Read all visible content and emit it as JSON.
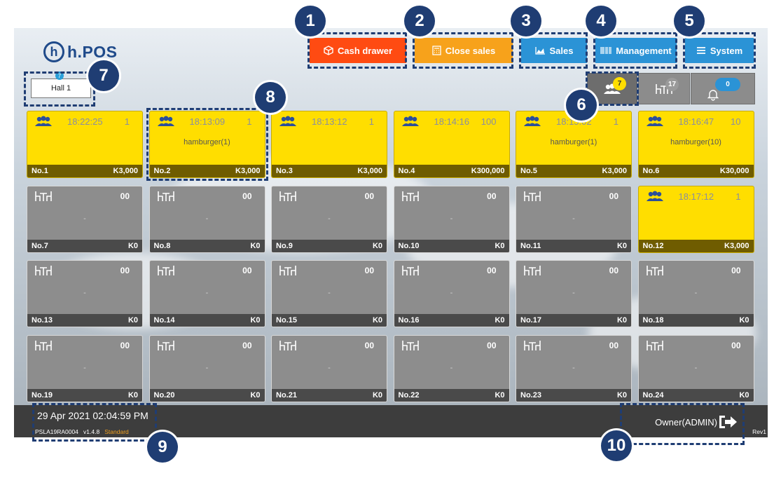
{
  "app": {
    "logo_text": "h.POS",
    "logo_mark": "h"
  },
  "toolbar": [
    {
      "label": "Cash drawer",
      "icon": "cash-drawer-icon",
      "color": "#ff4b12"
    },
    {
      "label": "Close sales",
      "icon": "calculator-icon",
      "color": "#f7a21b"
    },
    {
      "label": "Sales",
      "icon": "chart-icon",
      "color": "#2b93d6"
    },
    {
      "label": "Management",
      "icon": "barcode-icon",
      "color": "#2b93d6"
    },
    {
      "label": "System",
      "icon": "menu-icon",
      "color": "#2b93d6"
    }
  ],
  "hall": {
    "label": "Hall 1",
    "badge": "7"
  },
  "filters": [
    {
      "name": "occupied",
      "icon": "people-icon",
      "badge": "7",
      "badge_color": "#ffde00"
    },
    {
      "name": "empty",
      "icon": "table-icon",
      "badge": "17",
      "badge_color": "#9a9a9a"
    },
    {
      "name": "alerts",
      "icon": "bell-icon",
      "badge": "0",
      "badge_color": "#2b93d6"
    }
  ],
  "tables": [
    {
      "no": "No.1",
      "occupied": true,
      "time": "18:22:25",
      "guests": "1",
      "item": "",
      "amount": "K3,000"
    },
    {
      "no": "No.2",
      "occupied": true,
      "time": "18:13:09",
      "guests": "1",
      "item": "hamburger(1)",
      "amount": "K3,000"
    },
    {
      "no": "No.3",
      "occupied": true,
      "time": "18:13:12",
      "guests": "1",
      "item": "",
      "amount": "K3,000"
    },
    {
      "no": "No.4",
      "occupied": true,
      "time": "18:14:16",
      "guests": "100",
      "item": "",
      "amount": "K300,000"
    },
    {
      "no": "No.5",
      "occupied": true,
      "time": "18:15:02",
      "guests": "1",
      "item": "hamburger(1)",
      "amount": "K3,000"
    },
    {
      "no": "No.6",
      "occupied": true,
      "time": "18:16:47",
      "guests": "10",
      "item": "hamburger(10)",
      "amount": "K30,000"
    },
    {
      "no": "No.7",
      "occupied": false,
      "time": "",
      "guests": "00",
      "item": "-",
      "amount": "K0"
    },
    {
      "no": "No.8",
      "occupied": false,
      "time": "",
      "guests": "00",
      "item": "-",
      "amount": "K0"
    },
    {
      "no": "No.9",
      "occupied": false,
      "time": "",
      "guests": "00",
      "item": "-",
      "amount": "K0"
    },
    {
      "no": "No.10",
      "occupied": false,
      "time": "",
      "guests": "00",
      "item": "-",
      "amount": "K0"
    },
    {
      "no": "No.11",
      "occupied": false,
      "time": "",
      "guests": "00",
      "item": "-",
      "amount": "K0"
    },
    {
      "no": "No.12",
      "occupied": true,
      "time": "18:17:12",
      "guests": "1",
      "item": "",
      "amount": "K3,000"
    },
    {
      "no": "No.13",
      "occupied": false,
      "time": "",
      "guests": "00",
      "item": "-",
      "amount": "K0"
    },
    {
      "no": "No.14",
      "occupied": false,
      "time": "",
      "guests": "00",
      "item": "-",
      "amount": "K0"
    },
    {
      "no": "No.15",
      "occupied": false,
      "time": "",
      "guests": "00",
      "item": "-",
      "amount": "K0"
    },
    {
      "no": "No.16",
      "occupied": false,
      "time": "",
      "guests": "00",
      "item": "-",
      "amount": "K0"
    },
    {
      "no": "No.17",
      "occupied": false,
      "time": "",
      "guests": "00",
      "item": "-",
      "amount": "K0"
    },
    {
      "no": "No.18",
      "occupied": false,
      "time": "",
      "guests": "00",
      "item": "-",
      "amount": "K0"
    },
    {
      "no": "No.19",
      "occupied": false,
      "time": "",
      "guests": "00",
      "item": "-",
      "amount": "K0"
    },
    {
      "no": "No.20",
      "occupied": false,
      "time": "",
      "guests": "00",
      "item": "-",
      "amount": "K0"
    },
    {
      "no": "No.21",
      "occupied": false,
      "time": "",
      "guests": "00",
      "item": "-",
      "amount": "K0"
    },
    {
      "no": "No.22",
      "occupied": false,
      "time": "",
      "guests": "00",
      "item": "-",
      "amount": "K0"
    },
    {
      "no": "No.23",
      "occupied": false,
      "time": "",
      "guests": "00",
      "item": "-",
      "amount": "K0"
    },
    {
      "no": "No.24",
      "occupied": false,
      "time": "",
      "guests": "00",
      "item": "-",
      "amount": "K0"
    }
  ],
  "status": {
    "datetime": "29 Apr 2021 02:04:59 PM",
    "serial": "PSLA19RA0004",
    "version": "v1.4.8",
    "edition": "Standard",
    "user": "Owner(ADMIN)",
    "rev": "Rev1"
  },
  "callouts": [
    "1",
    "2",
    "3",
    "4",
    "5",
    "6",
    "7",
    "8",
    "9",
    "10"
  ],
  "colors": {
    "occupied": "#ffde00",
    "empty": "#8d8d8d",
    "callout": "#1f3d73"
  }
}
